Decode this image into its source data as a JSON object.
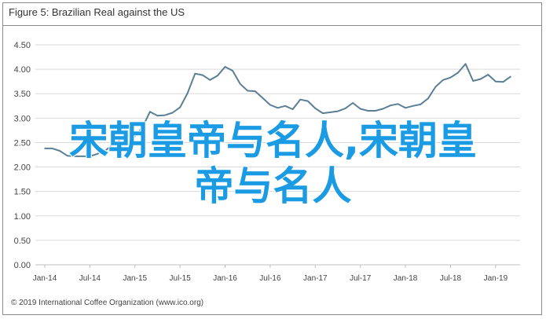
{
  "header": {
    "title": "Figure 5: Brazilian Real against the US"
  },
  "footer": {
    "copyright": "© 2019 International Coffee Organization (www.ico.org)"
  },
  "overlay": {
    "line1": "宋朝皇帝与名人,宋朝皇",
    "line2": "帝与名人",
    "color": "#1a9be3"
  },
  "colors": {
    "line": "#5b7f95",
    "grid": "#d9d9d9",
    "axis": "#bfbfbf",
    "frame": "#8a8a8a"
  },
  "chart_data": {
    "type": "line",
    "title": "Figure 5: Brazilian Real against the US",
    "xlabel": "",
    "ylabel": "",
    "ylim": [
      0,
      4.5
    ],
    "yticks": [
      "0.00",
      "0.50",
      "1.00",
      "1.50",
      "2.00",
      "2.50",
      "3.00",
      "3.50",
      "4.00",
      "4.50"
    ],
    "xticks": [
      "Jan-14",
      "Jul-14",
      "Jan-15",
      "Jul-15",
      "Jan-16",
      "Jul-16",
      "Jan-17",
      "Jul-17",
      "Jan-18",
      "Jul-18",
      "Jan-19"
    ],
    "grid": "horizontal",
    "legend": "none",
    "series": [
      {
        "x": [
          "2014-01",
          "2014-02",
          "2014-03",
          "2014-04",
          "2014-05",
          "2014-06",
          "2014-07",
          "2014-08",
          "2014-09",
          "2014-10",
          "2014-11",
          "2014-12",
          "2015-01",
          "2015-02",
          "2015-03",
          "2015-04",
          "2015-05",
          "2015-06",
          "2015-07",
          "2015-08",
          "2015-09",
          "2015-10",
          "2015-11",
          "2015-12",
          "2016-01",
          "2016-02",
          "2016-03",
          "2016-04",
          "2016-05",
          "2016-06",
          "2016-07",
          "2016-08",
          "2016-09",
          "2016-10",
          "2016-11",
          "2016-12",
          "2017-01",
          "2017-02",
          "2017-03",
          "2017-04",
          "2017-05",
          "2017-06",
          "2017-07",
          "2017-08",
          "2017-09",
          "2017-10",
          "2017-11",
          "2017-12",
          "2018-01",
          "2018-02",
          "2018-03",
          "2018-04",
          "2018-05",
          "2018-06",
          "2018-07",
          "2018-08",
          "2018-09",
          "2018-10",
          "2018-11",
          "2018-12",
          "2019-01",
          "2019-02",
          "2019-03"
        ],
        "values": [
          2.38,
          2.38,
          2.33,
          2.23,
          2.22,
          2.22,
          2.22,
          2.27,
          2.33,
          2.45,
          2.55,
          2.64,
          2.63,
          2.81,
          3.13,
          3.05,
          3.06,
          3.11,
          3.22,
          3.51,
          3.91,
          3.88,
          3.78,
          3.87,
          4.05,
          3.97,
          3.7,
          3.56,
          3.55,
          3.41,
          3.27,
          3.21,
          3.25,
          3.18,
          3.38,
          3.35,
          3.2,
          3.1,
          3.12,
          3.14,
          3.2,
          3.31,
          3.19,
          3.15,
          3.15,
          3.19,
          3.26,
          3.29,
          3.21,
          3.25,
          3.28,
          3.4,
          3.64,
          3.78,
          3.83,
          3.93,
          4.11,
          3.76,
          3.8,
          3.89,
          3.75,
          3.74,
          3.85
        ]
      }
    ]
  }
}
